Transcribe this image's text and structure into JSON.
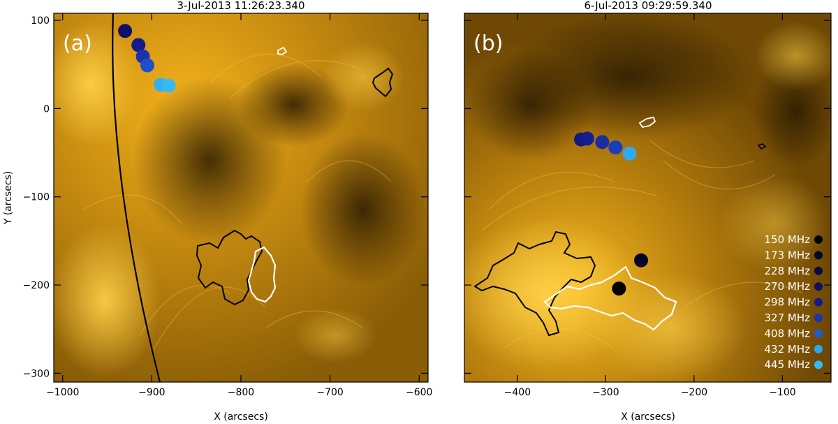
{
  "ylabel": "Y (arcsecs)",
  "chart_data": [
    {
      "type": "scatter",
      "panel_letter": "(a)",
      "title": "3-Jul-2013 11:26:23.340",
      "xlabel": "X (arcsecs)",
      "ylabel": "Y (arcsecs)",
      "xlim": [
        -1010,
        -590
      ],
      "ylim": [
        -310,
        108
      ],
      "xticks": [
        -1000,
        -900,
        -800,
        -700,
        -600
      ],
      "xtick_labels": [
        "−1000",
        "−900",
        "−800",
        "−700",
        "−600"
      ],
      "yticks": [
        100,
        0,
        -100,
        -200,
        -300
      ],
      "ytick_labels": [
        "100",
        "0",
        "−100",
        "−200",
        "−300"
      ],
      "points": [
        {
          "x": -930,
          "y": 88,
          "color": "#10106a"
        },
        {
          "x": -915,
          "y": 72,
          "color": "#151b8c"
        },
        {
          "x": -910,
          "y": 59,
          "color": "#1a33ad"
        },
        {
          "x": -905,
          "y": 49,
          "color": "#1e4fc8"
        },
        {
          "x": -890,
          "y": 27,
          "color": "#31b0f2"
        },
        {
          "x": -881,
          "y": 26,
          "color": "#3ab8f5"
        }
      ]
    },
    {
      "type": "scatter",
      "panel_letter": "(b)",
      "title": "6-Jul-2013 09:29:59.340",
      "xlabel": "X (arcsecs)",
      "xlim": [
        -460,
        -45
      ],
      "ylim": [
        -310,
        108
      ],
      "xticks": [
        -400,
        -300,
        -200,
        -100
      ],
      "xtick_labels": [
        "−400",
        "−300",
        "−200",
        "−100"
      ],
      "yticks": [
        100,
        0,
        -100,
        -200,
        -300
      ],
      "points": [
        {
          "x": -285,
          "y": -204,
          "color": "#000000"
        },
        {
          "x": -260,
          "y": -172,
          "color": "#050528"
        },
        {
          "x": -328,
          "y": -35,
          "color": "#121a80"
        },
        {
          "x": -321,
          "y": -34,
          "color": "#151e8e"
        },
        {
          "x": -304,
          "y": -38,
          "color": "#1a2c9e"
        },
        {
          "x": -289,
          "y": -44,
          "color": "#1d3cb8"
        },
        {
          "x": -273,
          "y": -51,
          "color": "#31a9f0"
        }
      ],
      "legend": [
        {
          "label": "150 MHz",
          "color": "#000000"
        },
        {
          "label": "173 MHz",
          "color": "#05052a"
        },
        {
          "label": "228 MHz",
          "color": "#0a0a45"
        },
        {
          "label": "270 MHz",
          "color": "#10105e"
        },
        {
          "label": "298 MHz",
          "color": "#141a8a"
        },
        {
          "label": "327 MHz",
          "color": "#1a35ad"
        },
        {
          "label": "408 MHz",
          "color": "#1e5bd0"
        },
        {
          "label": "432 MHz",
          "color": "#2ea6f0"
        },
        {
          "label": "445 MHz",
          "color": "#3ab8f5"
        }
      ]
    }
  ]
}
